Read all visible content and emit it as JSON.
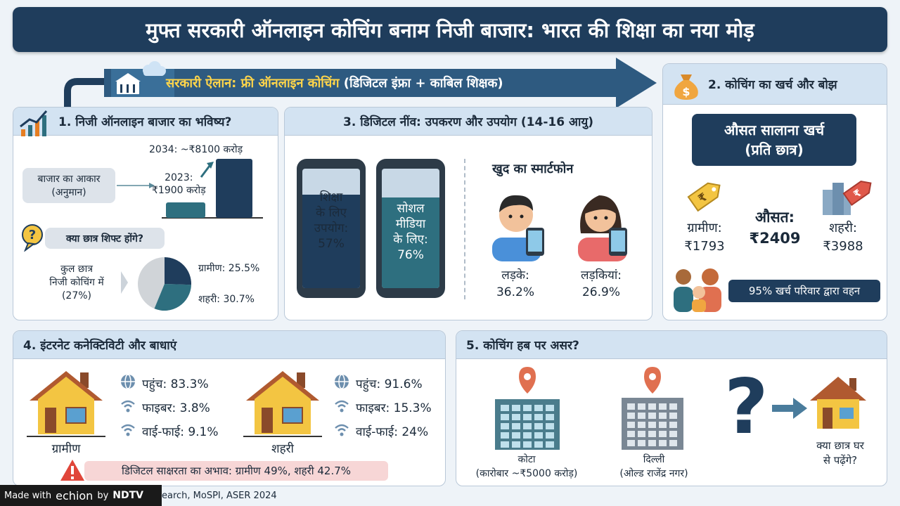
{
  "title": "मुफ्त सरकारी ऑनलाइन कोचिंग बनाम निजी बाजार: भारत की शिक्षा का नया मोड़",
  "banner": {
    "highlight": "सरकारी ऐलान: फ्री ऑनलाइन कोचिंग",
    "rest": " (डिजिटल इंफ्रा + काबिल शिक्षक)"
  },
  "s1": {
    "title": "1. निजी ऑनलाइन बाजार का भविष्य?",
    "market_label": "बाजार का आकार\n(अनुमान)",
    "bar2023": "2023:\n₹1900 करोड़",
    "bar2034": "2034: ~₹8100 करोड़",
    "chart_data": {
      "type": "bar",
      "categories": [
        "2023",
        "2034"
      ],
      "values": [
        1900,
        8100
      ],
      "ylabel": ""
    },
    "shift_q": "क्या छात्र शिफ्ट होंगे?",
    "total": "कुल छात्र\nनिजी कोचिंग में\n(27%)",
    "rural": "ग्रामीण: 25.5%",
    "urban": "शहरी: 30.7%",
    "pie": {
      "rural": 25.5,
      "urban": 30.7
    }
  },
  "s3": {
    "title": "3. डिजिटल नींव: उपकरण और उपयोग (14-16 आयु)",
    "edu": "शिक्षा\nके लिए\nउपयोग:\n57%",
    "social": "सोशल\nमीडिया\nके लिए:\n76%",
    "own": "खुद का स्मार्टफोन",
    "boys": "लड़के:\n36.2%",
    "girls": "लड़कियां:\n26.9%",
    "edu_val": 57,
    "social_val": 76
  },
  "s2": {
    "title": "2. कोचिंग का खर्च और बोझ",
    "avg_box": "औसत सालाना खर्च\n(प्रति छात्र)",
    "rural": "ग्रामीण:\n₹1793",
    "avg": "औसत:\n₹2409",
    "urban": "शहरी:\n₹3988",
    "family": "95% खर्च परिवार द्वारा वहन"
  },
  "s4": {
    "title": "4. इंटरनेट कनेक्टिविटी और बाधाएं",
    "rural_label": "ग्रामीण",
    "urban_label": "शहरी",
    "rural_stats": [
      "पहुंच: 83.3%",
      "फाइबर: 3.8%",
      "वाई-फाई: 9.1%"
    ],
    "urban_stats": [
      "पहुंच: 91.6%",
      "फाइबर: 15.3%",
      "वाई-फाई: 24%"
    ],
    "warning": "डिजिटल साक्षरता का अभाव: ग्रामीण 49%, शहरी 42.7%"
  },
  "s5": {
    "title": "5. कोचिंग हब पर असर?",
    "kota": "कोटा\n(कारोबार ~₹5000 करोड़)",
    "delhi": "दिल्ली\n(ओल्ड राजेंद्र नगर)",
    "home": "क्या छात्र घर\nसे पढ़ेंगे?"
  },
  "footer": {
    "made": "Made with",
    "brand": "echion",
    "by": "by",
    "ndtv": "NDTV",
    "source": "earch, MoSPI, ASER 2024"
  },
  "colors": {
    "navy": "#1f3d5c",
    "teal": "#2e6f7f",
    "accent": "#ffd54a",
    "orange": "#e67e22"
  }
}
